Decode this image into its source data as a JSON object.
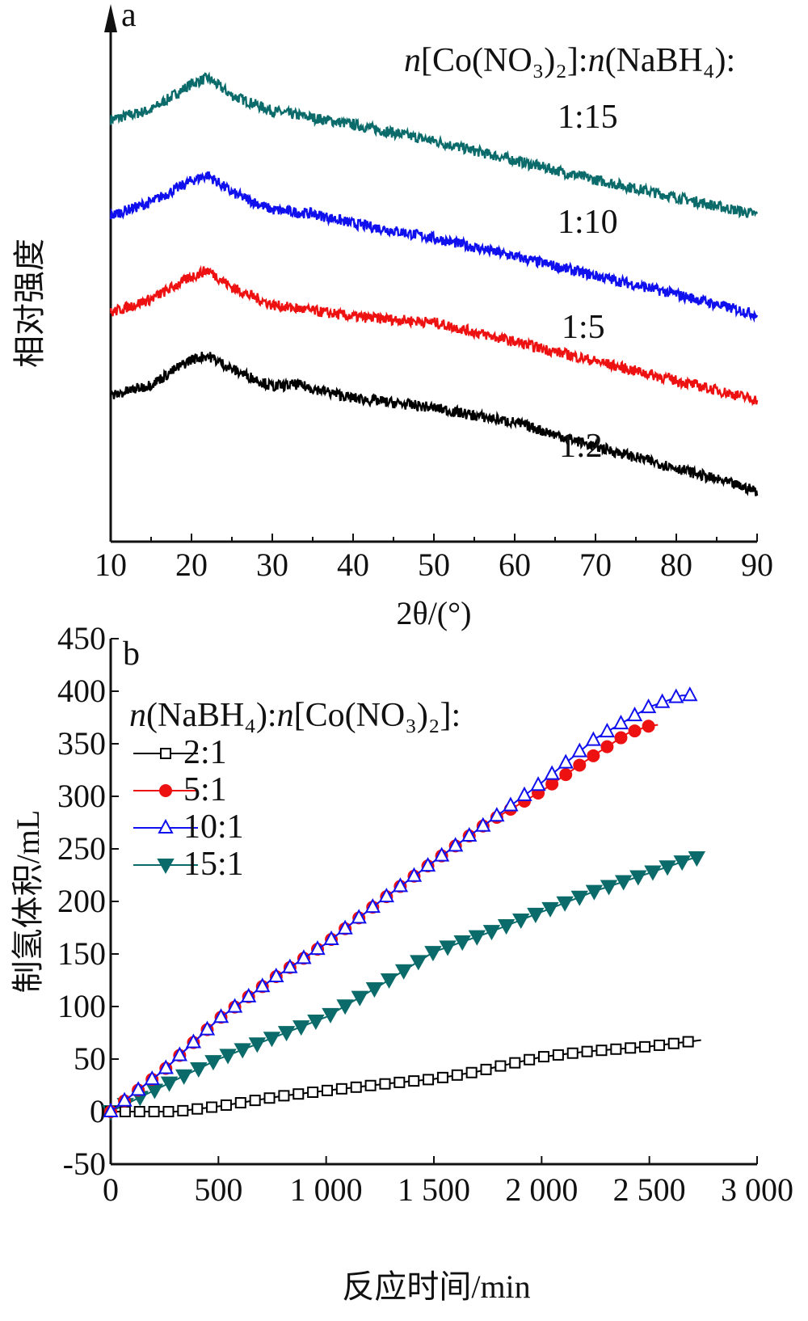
{
  "chart_data": [
    {
      "panel": "a",
      "type": "line",
      "xlabel": "2θ/(°)",
      "ylabel": "相对强度",
      "xlim": [
        10,
        90
      ],
      "x_ticks": [
        "10",
        "20",
        "30",
        "40",
        "50",
        "60",
        "70",
        "80",
        "90"
      ],
      "y_ticks_shown": false,
      "legend_title": "n[Co(NO₃)₂]:n(NaBH₄):",
      "series": [
        {
          "name": "1:15",
          "color": "#0b6b6b",
          "points": [
            [
              10,
              4.35
            ],
            [
              15,
              4.45
            ],
            [
              20,
              4.72
            ],
            [
              22,
              4.78
            ],
            [
              25,
              4.6
            ],
            [
              30,
              4.44
            ],
            [
              40,
              4.3
            ],
            [
              50,
              4.13
            ],
            [
              60,
              3.93
            ],
            [
              70,
              3.73
            ],
            [
              80,
              3.55
            ],
            [
              90,
              3.37
            ]
          ]
        },
        {
          "name": "1:10",
          "color": "#1010ee",
          "points": [
            [
              10,
              3.36
            ],
            [
              15,
              3.5
            ],
            [
              20,
              3.72
            ],
            [
              22,
              3.78
            ],
            [
              25,
              3.6
            ],
            [
              30,
              3.42
            ],
            [
              35,
              3.38
            ],
            [
              40,
              3.28
            ],
            [
              50,
              3.13
            ],
            [
              60,
              2.94
            ],
            [
              70,
              2.74
            ],
            [
              80,
              2.55
            ],
            [
              90,
              2.34
            ]
          ]
        },
        {
          "name": "1:5",
          "color": "#ee1111",
          "points": [
            [
              10,
              2.36
            ],
            [
              15,
              2.5
            ],
            [
              20,
              2.73
            ],
            [
              22,
              2.8
            ],
            [
              25,
              2.62
            ],
            [
              30,
              2.44
            ],
            [
              40,
              2.32
            ],
            [
              50,
              2.26
            ],
            [
              60,
              2.06
            ],
            [
              70,
              1.86
            ],
            [
              80,
              1.66
            ],
            [
              90,
              1.46
            ]
          ]
        },
        {
          "name": "1:2",
          "color": "#000000",
          "points": [
            [
              10,
              1.5
            ],
            [
              15,
              1.62
            ],
            [
              20,
              1.88
            ],
            [
              22,
              1.92
            ],
            [
              25,
              1.78
            ],
            [
              30,
              1.6
            ],
            [
              33,
              1.62
            ],
            [
              35,
              1.58
            ],
            [
              40,
              1.48
            ],
            [
              50,
              1.38
            ],
            [
              55,
              1.3
            ],
            [
              60,
              1.23
            ],
            [
              70,
              0.98
            ],
            [
              80,
              0.76
            ],
            [
              90,
              0.52
            ]
          ]
        }
      ]
    },
    {
      "panel": "b",
      "type": "line",
      "xlabel": "反应时间/min",
      "ylabel": "制氢体积/mL",
      "xlim": [
        0,
        3000
      ],
      "ylim": [
        -50,
        450
      ],
      "x_ticks": [
        "0",
        "500",
        "1 000",
        "1 500",
        "2 000",
        "2 500",
        "3 000"
      ],
      "y_ticks": [
        "-50",
        "0",
        "50",
        "100",
        "150",
        "200",
        "250",
        "300",
        "350",
        "400",
        "450"
      ],
      "legend_title": "n(NaBH₄):n[Co(NO₃)₂]:",
      "series": [
        {
          "name": "2:1",
          "color": "#000000",
          "marker": "open-square",
          "points": [
            [
              0,
              0
            ],
            [
              300,
              0
            ],
            [
              500,
              5
            ],
            [
              800,
              15
            ],
            [
              1000,
              20
            ],
            [
              1300,
              27
            ],
            [
              1500,
              31
            ],
            [
              1700,
              38
            ],
            [
              1800,
              43
            ],
            [
              2000,
              52
            ],
            [
              2200,
              57
            ],
            [
              2500,
              62
            ],
            [
              2700,
              67
            ],
            [
              2740,
              68
            ]
          ]
        },
        {
          "name": "5:1",
          "color": "#ee1111",
          "marker": "filled-circle",
          "points": [
            [
              0,
              0
            ],
            [
              250,
              40
            ],
            [
              500,
              88
            ],
            [
              750,
              126
            ],
            [
              1000,
              160
            ],
            [
              1250,
              200
            ],
            [
              1500,
              238
            ],
            [
              1750,
              275
            ],
            [
              2000,
              305
            ],
            [
              2250,
              340
            ],
            [
              2400,
              360
            ],
            [
              2500,
              367
            ],
            [
              2540,
              368
            ]
          ]
        },
        {
          "name": "10:1",
          "color": "#1010ee",
          "marker": "open-triangle-up",
          "points": [
            [
              0,
              0
            ],
            [
              250,
              40
            ],
            [
              500,
              88
            ],
            [
              750,
              126
            ],
            [
              1000,
              160
            ],
            [
              1250,
              200
            ],
            [
              1500,
              238
            ],
            [
              1750,
              275
            ],
            [
              2000,
              313
            ],
            [
              2250,
              355
            ],
            [
              2500,
              385
            ],
            [
              2650,
              396
            ],
            [
              2700,
              396
            ]
          ]
        },
        {
          "name": "15:1",
          "color": "#0b6b6b",
          "marker": "filled-triangle-down",
          "points": [
            [
              0,
              0
            ],
            [
              250,
              25
            ],
            [
              500,
              50
            ],
            [
              750,
              70
            ],
            [
              1000,
              90
            ],
            [
              1250,
              120
            ],
            [
              1500,
              152
            ],
            [
              1750,
              170
            ],
            [
              2000,
              190
            ],
            [
              2250,
              210
            ],
            [
              2500,
              227
            ],
            [
              2700,
              241
            ],
            [
              2740,
              242
            ]
          ]
        }
      ]
    }
  ]
}
